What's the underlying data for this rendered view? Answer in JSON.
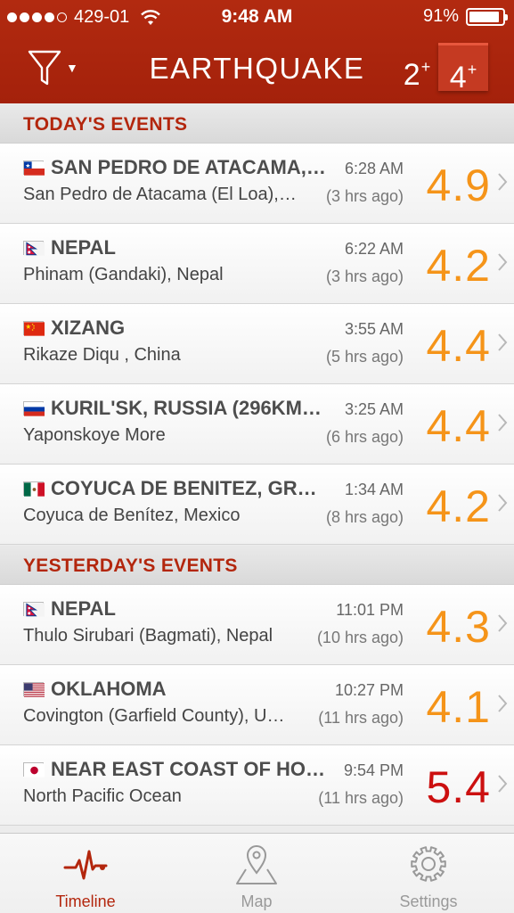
{
  "status_bar": {
    "carrier": "429-01",
    "time": "9:48 AM",
    "battery": "91%",
    "battery_level": 0.91
  },
  "nav": {
    "title": "EARTHQUAKE",
    "filter_icon": "funnel-icon",
    "mag_filters": [
      {
        "value": "2",
        "sup": "+"
      },
      {
        "value": "4",
        "sup": "+",
        "selected": true
      }
    ]
  },
  "sections": [
    {
      "title": "TODAY'S EVENTS",
      "events": [
        {
          "flag": "chile",
          "place": "SAN PEDRO DE ATACAMA,…",
          "time": "6:28 AM",
          "region": "San Pedro de Atacama (El Loa),…",
          "ago": "(3 hrs ago)",
          "magnitude": "4.9"
        },
        {
          "flag": "nepal",
          "place": "NEPAL",
          "time": "6:22 AM",
          "region": "Phinam (Gandaki), Nepal",
          "ago": "(3 hrs ago)",
          "magnitude": "4.2"
        },
        {
          "flag": "china",
          "place": "XIZANG",
          "time": "3:55 AM",
          "region": "Rikaze Diqu , China",
          "ago": "(5 hrs ago)",
          "magnitude": "4.4"
        },
        {
          "flag": "russia",
          "place": "KURIL'SK, RUSSIA (296KM…",
          "time": "3:25 AM",
          "region": "Yaponskoye More",
          "ago": "(6 hrs ago)",
          "magnitude": "4.4"
        },
        {
          "flag": "mexico",
          "place": "COYUCA DE BENITEZ, GR…",
          "time": "1:34 AM",
          "region": "Coyuca de Benítez, Mexico",
          "ago": "(8 hrs ago)",
          "magnitude": "4.2"
        }
      ]
    },
    {
      "title": "YESTERDAY'S EVENTS",
      "events": [
        {
          "flag": "nepal",
          "place": "NEPAL",
          "time": "11:01 PM",
          "region": "Thulo Sirubari (Bagmati), Nepal",
          "ago": "(10 hrs ago)",
          "magnitude": "4.3"
        },
        {
          "flag": "usa",
          "place": "OKLAHOMA",
          "time": "10:27 PM",
          "region": "Covington (Garfield County), U…",
          "ago": "(11 hrs ago)",
          "magnitude": "4.1"
        },
        {
          "flag": "japan",
          "place": "NEAR EAST COAST OF HO…",
          "time": "9:54 PM",
          "region": "North Pacific Ocean",
          "ago": "(11 hrs ago)",
          "magnitude": "5.4",
          "major": true
        }
      ]
    }
  ],
  "tabs": [
    {
      "label": "Timeline",
      "icon": "heartbeat-icon",
      "active": true
    },
    {
      "label": "Map",
      "icon": "map-pin-icon"
    },
    {
      "label": "Settings",
      "icon": "gear-icon"
    }
  ],
  "colors": {
    "header": "#a4210b",
    "section_title": "#b3260d",
    "magnitude": "#f59419",
    "magnitude_major": "#cc1010"
  }
}
